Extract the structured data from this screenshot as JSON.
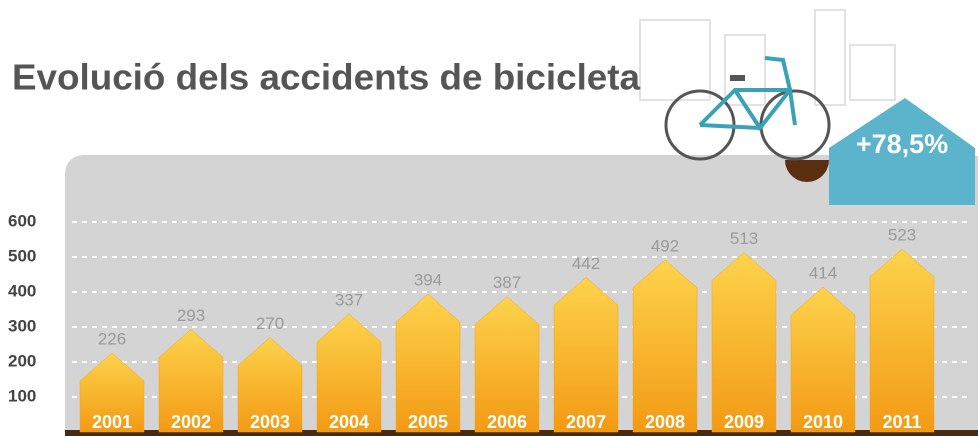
{
  "chart_data": {
    "type": "bar",
    "title": "Evolució dels accidents de bicicleta",
    "annotation": "+78,5%",
    "categories": [
      "2001",
      "2002",
      "2003",
      "2004",
      "2005",
      "2006",
      "2007",
      "2008",
      "2009",
      "2010",
      "2011"
    ],
    "values": [
      226,
      293,
      270,
      337,
      394,
      387,
      442,
      492,
      513,
      414,
      523
    ],
    "ylim": [
      0,
      600
    ],
    "yticks": [
      100,
      200,
      300,
      400,
      500,
      600
    ],
    "grid": true,
    "color": "#f7a21b"
  }
}
